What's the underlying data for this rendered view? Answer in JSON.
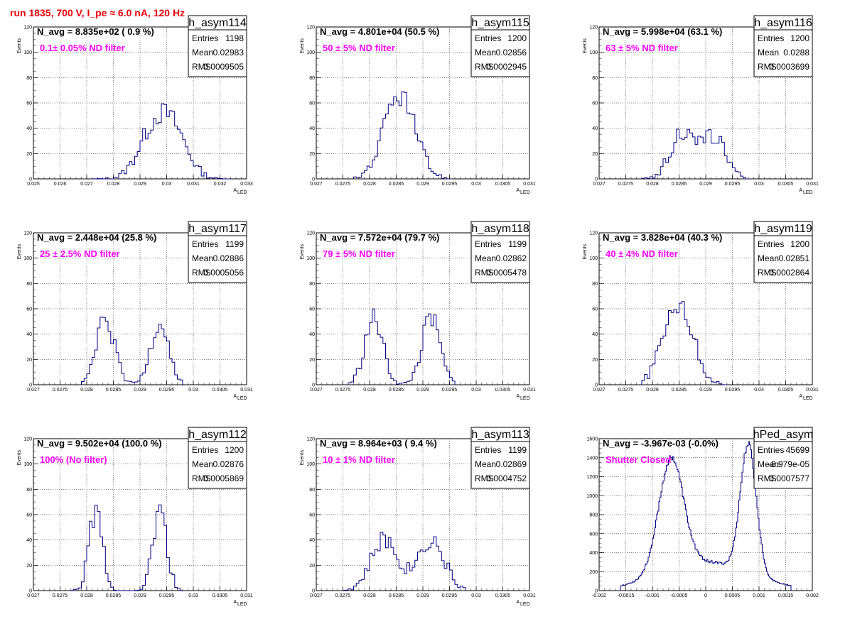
{
  "run_title": "run 1835,   700 V, I_pe ≈ 6.0 nA, 120 Hz",
  "colors": {
    "histogram": "#000080",
    "label": "#ff00ff",
    "title": "#e8000b",
    "grid": "#000000"
  },
  "chart_data": [
    {
      "type": "histogram",
      "name": "h_asym114",
      "title": "N_avg = 8.835e+02 ( 0.9 %)",
      "label": "0.1± 0.05% ND filter",
      "stats": {
        "entries_label": "Entries",
        "entries": "1198",
        "mean_label": "Mean",
        "mean": "0.02983",
        "rms_label": "RMS",
        "rms": "0.0009505"
      },
      "xlabel": "A",
      "xlabel_sub": "LED",
      "ylabel": "Events",
      "xlim": [
        0.025,
        0.033
      ],
      "ylim": [
        0,
        120
      ],
      "xticks": [
        "0.025",
        "0.026",
        "0.027",
        "0.028",
        "0.029",
        "0.03",
        "0.031",
        "0.032",
        "0.033"
      ],
      "yticks": [
        "0",
        "20",
        "40",
        "60",
        "80",
        "100",
        "120"
      ],
      "grid": true,
      "peaks": [
        {
          "mu": 0.02945,
          "sigma": 0.00055,
          "amp": 33
        },
        {
          "mu": 0.03025,
          "sigma": 0.00055,
          "amp": 35
        }
      ],
      "bin_range": [
        0.0272,
        0.0324
      ],
      "bin_width": 0.0001
    },
    {
      "type": "histogram",
      "name": "h_asym115",
      "title": "N_avg = 4.801e+04 (50.5 %)",
      "label": "50 ± 5% ND filter",
      "stats": {
        "entries_label": "Entries",
        "entries": "1200",
        "mean_label": "Mean",
        "mean": "0.02856",
        "rms_label": "RMS",
        "rms": "0.0002945"
      },
      "xlabel": "A",
      "xlabel_sub": "LED",
      "ylabel": "Events",
      "xlim": [
        0.027,
        0.031
      ],
      "ylim": [
        0,
        120
      ],
      "xticks": [
        "0.027",
        "0.0275",
        "0.028",
        "0.0285",
        "0.029",
        "0.0295",
        "0.03",
        "0.0305",
        "0.031"
      ],
      "yticks": [
        "0",
        "20",
        "40",
        "60",
        "80",
        "100",
        "120"
      ],
      "grid": true,
      "peaks": [
        {
          "mu": 0.02856,
          "sigma": 0.00029,
          "amp": 66
        }
      ],
      "bin_range": [
        0.0277,
        0.0295
      ],
      "bin_width": 5e-05
    },
    {
      "type": "histogram",
      "name": "h_asym116",
      "title": "N_avg = 5.998e+04 (63.1 %)",
      "label": "63 ± 5% ND filter",
      "stats": {
        "entries_label": "Entries",
        "entries": "1200",
        "mean_label": "Mean",
        "mean": "0.0288",
        "rms_label": "RMS",
        "rms": "0.0003699"
      },
      "xlabel": "A",
      "xlabel_sub": "LED",
      "ylabel": "Events",
      "xlim": [
        0.027,
        0.031
      ],
      "ylim": [
        0,
        120
      ],
      "xticks": [
        "0.027",
        "0.0275",
        "0.028",
        "0.0285",
        "0.029",
        "0.0295",
        "0.03",
        "0.0305",
        "0.031"
      ],
      "yticks": [
        "0",
        "20",
        "40",
        "60",
        "80",
        "100",
        "120"
      ],
      "grid": true,
      "peaks": [
        {
          "mu": 0.02855,
          "sigma": 0.00022,
          "amp": 36
        },
        {
          "mu": 0.02915,
          "sigma": 0.00022,
          "amp": 34
        }
      ],
      "bin_range": [
        0.0278,
        0.0298
      ],
      "bin_width": 5e-05
    },
    {
      "type": "histogram",
      "name": "h_asym117",
      "title": "N_avg = 2.448e+04 (25.8 %)",
      "label": "25 ± 2.5% ND filter",
      "stats": {
        "entries_label": "Entries",
        "entries": "1199",
        "mean_label": "Mean",
        "mean": "0.02886",
        "rms_label": "RMS",
        "rms": "0.0005056"
      },
      "xlabel": "A",
      "xlabel_sub": "LED",
      "ylabel": "Events",
      "xlim": [
        0.027,
        0.031
      ],
      "ylim": [
        0,
        120
      ],
      "xticks": [
        "0.027",
        "0.0275",
        "0.028",
        "0.0285",
        "0.029",
        "0.0295",
        "0.03",
        "0.0305",
        "0.031"
      ],
      "yticks": [
        "0",
        "20",
        "40",
        "60",
        "80",
        "100",
        "120"
      ],
      "grid": true,
      "peaks": [
        {
          "mu": 0.02835,
          "sigma": 0.00017,
          "amp": 50
        },
        {
          "mu": 0.02937,
          "sigma": 0.00017,
          "amp": 50
        }
      ],
      "bin_range": [
        0.0279,
        0.0298
      ],
      "bin_width": 5e-05
    },
    {
      "type": "histogram",
      "name": "h_asym118",
      "title": "N_avg = 7.572e+04 (79.7 %)",
      "label": "79 ± 5% ND filter",
      "stats": {
        "entries_label": "Entries",
        "entries": "1199",
        "mean_label": "Mean",
        "mean": "0.02862",
        "rms_label": "RMS",
        "rms": "0.0005478"
      },
      "xlabel": "A",
      "xlabel_sub": "LED",
      "ylabel": "Events",
      "xlim": [
        0.027,
        0.031
      ],
      "ylim": [
        0,
        120
      ],
      "xticks": [
        "0.027",
        "0.0275",
        "0.028",
        "0.0285",
        "0.029",
        "0.0295",
        "0.03",
        "0.0305",
        "0.031"
      ],
      "yticks": [
        "0",
        "20",
        "40",
        "60",
        "80",
        "100",
        "120"
      ],
      "grid": true,
      "peaks": [
        {
          "mu": 0.02808,
          "sigma": 0.00017,
          "amp": 52
        },
        {
          "mu": 0.02915,
          "sigma": 0.00017,
          "amp": 52
        }
      ],
      "bin_range": [
        0.0276,
        0.0296
      ],
      "bin_width": 5e-05
    },
    {
      "type": "histogram",
      "name": "h_asym119",
      "title": "N_avg = 3.828e+04 (40.3 %)",
      "label": "40 ± 4% ND filter",
      "stats": {
        "entries_label": "Entries",
        "entries": "1200",
        "mean_label": "Mean",
        "mean": "0.02851",
        "rms_label": "RMS",
        "rms": "0.0002864"
      },
      "xlabel": "A",
      "xlabel_sub": "LED",
      "ylabel": "Events",
      "xlim": [
        0.027,
        0.031
      ],
      "ylim": [
        0,
        120
      ],
      "xticks": [
        "0.027",
        "0.0275",
        "0.028",
        "0.0285",
        "0.029",
        "0.0295",
        "0.03",
        "0.0305",
        "0.031"
      ],
      "yticks": [
        "0",
        "20",
        "40",
        "60",
        "80",
        "100",
        "120"
      ],
      "grid": true,
      "peaks": [
        {
          "mu": 0.02848,
          "sigma": 0.00027,
          "amp": 66
        }
      ],
      "bin_range": [
        0.0278,
        0.0294
      ],
      "bin_width": 5e-05
    },
    {
      "type": "histogram",
      "name": "h_asym112",
      "title": "N_avg = 9.502e+04 (100.0 %)",
      "label": "100% (No filter)",
      "stats": {
        "entries_label": "Entries",
        "entries": "1200",
        "mean_label": "Mean",
        "mean": "0.02876",
        "rms_label": "RMS",
        "rms": "0.0005869"
      },
      "xlabel": "A",
      "xlabel_sub": "LED",
      "ylabel": "Events",
      "xlim": [
        0.027,
        0.031
      ],
      "ylim": [
        0,
        120
      ],
      "xticks": [
        "0.027",
        "0.0275",
        "0.028",
        "0.0285",
        "0.029",
        "0.0295",
        "0.03",
        "0.0305",
        "0.031"
      ],
      "yticks": [
        "0",
        "20",
        "40",
        "60",
        "80",
        "100",
        "120"
      ],
      "grid": true,
      "peaks": [
        {
          "mu": 0.02817,
          "sigma": 0.00013,
          "amp": 62
        },
        {
          "mu": 0.02937,
          "sigma": 0.00013,
          "amp": 62
        }
      ],
      "bin_range": [
        0.0277,
        0.0298
      ],
      "bin_width": 5e-05
    },
    {
      "type": "histogram",
      "name": "h_asym113",
      "title": "N_avg = 8.964e+03 ( 9.4 %)",
      "label": "10 ± 1% ND filter",
      "stats": {
        "entries_label": "Entries",
        "entries": "1199",
        "mean_label": "Mean",
        "mean": "0.02869",
        "rms_label": "RMS",
        "rms": "0.0004752"
      },
      "xlabel": "A",
      "xlabel_sub": "LED",
      "ylabel": "Events",
      "xlim": [
        0.027,
        0.031
      ],
      "ylim": [
        0,
        120
      ],
      "xticks": [
        "0.027",
        "0.0275",
        "0.028",
        "0.0285",
        "0.029",
        "0.0295",
        "0.03",
        "0.0305",
        "0.031"
      ],
      "yticks": [
        "0",
        "20",
        "40",
        "60",
        "80",
        "100",
        "120"
      ],
      "grid": true,
      "peaks": [
        {
          "mu": 0.02828,
          "sigma": 0.00025,
          "amp": 40
        },
        {
          "mu": 0.02915,
          "sigma": 0.00025,
          "amp": 40
        }
      ],
      "bin_range": [
        0.0275,
        0.0298
      ],
      "bin_width": 5e-05
    },
    {
      "type": "histogram",
      "name": "hPed_asym",
      "title": "N_avg = -3.967e-03 (-0.0%)",
      "label": "Shutter Closed",
      "stats": {
        "entries_label": "Entries",
        "entries": "45699",
        "mean_label": "Mean",
        "mean": "-8.979e-05",
        "rms_label": "RMS",
        "rms": "0.0007577"
      },
      "xlabel": "",
      "xlabel_sub": "",
      "ylabel": "",
      "xlim": [
        -0.002,
        0.002
      ],
      "ylim": [
        0,
        1600
      ],
      "xticks": [
        "-0.002",
        "-0.0015",
        "-0.001",
        "-0.0005",
        "0",
        "0.0005",
        "0.001",
        "0.0015",
        "0.002"
      ],
      "yticks": [
        "0",
        "200",
        "400",
        "600",
        "800",
        "1000",
        "1200",
        "1400",
        "1600"
      ],
      "grid": true,
      "peaks": [
        {
          "mu": -0.00065,
          "sigma": 0.00023,
          "amp": 1180
        },
        {
          "mu": 0.0008,
          "sigma": 0.00015,
          "amp": 1350
        },
        {
          "mu": 0.0,
          "sigma": 0.00085,
          "amp": 300
        }
      ],
      "bin_range": [
        -0.0016,
        0.0016
      ],
      "bin_width": 2e-05
    }
  ]
}
